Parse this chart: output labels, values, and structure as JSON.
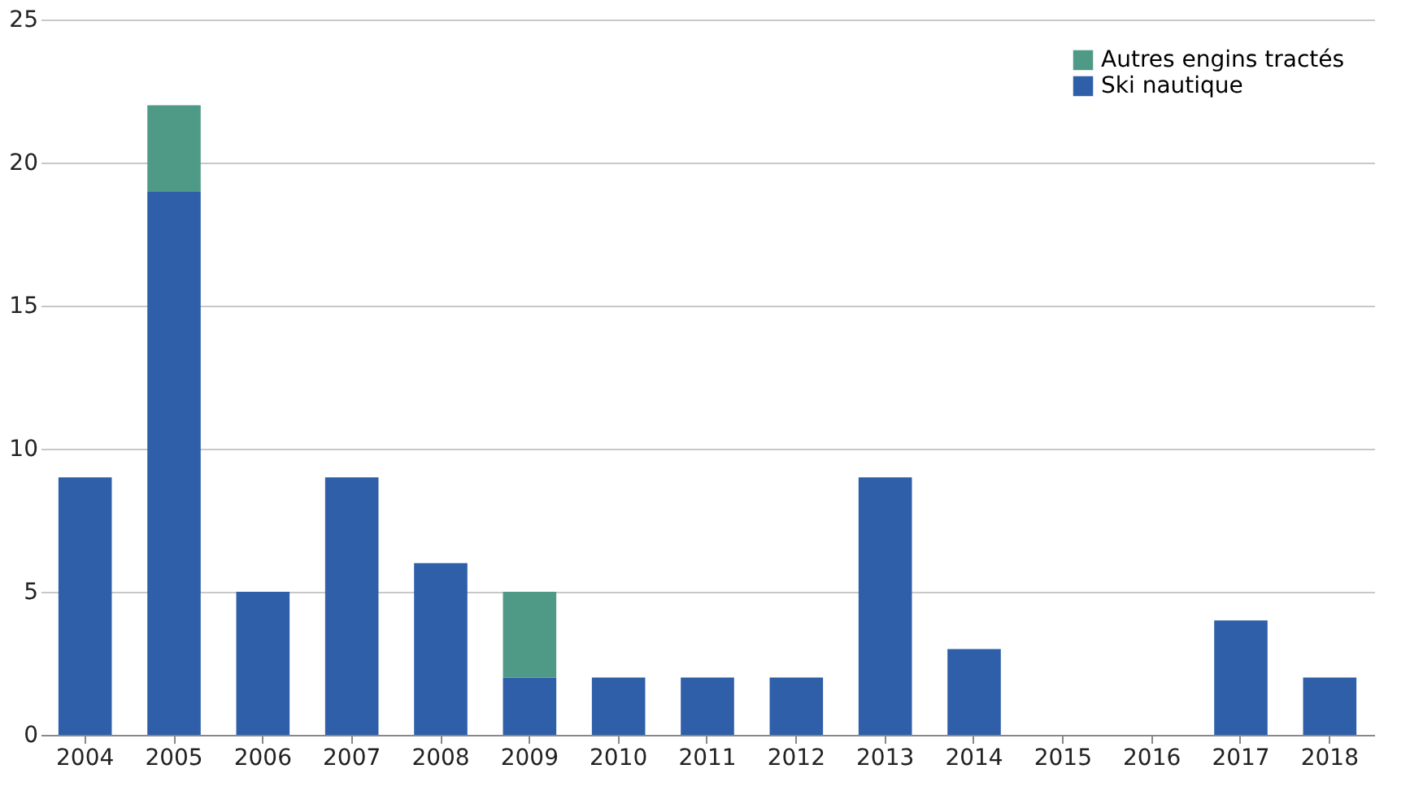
{
  "chart_data": {
    "type": "bar",
    "stacked": true,
    "categories": [
      "2004",
      "2005",
      "2006",
      "2007",
      "2008",
      "2009",
      "2010",
      "2011",
      "2012",
      "2013",
      "2014",
      "2015",
      "2016",
      "2017",
      "2018"
    ],
    "series": [
      {
        "name": "Ski nautique",
        "color": "#2e5fa8",
        "values": [
          9,
          19,
          5,
          9,
          6,
          2,
          2,
          2,
          2,
          9,
          3,
          0,
          0,
          4,
          2
        ]
      },
      {
        "name": "Autres engins tractés",
        "color": "#4f9a86",
        "values": [
          null,
          3,
          null,
          null,
          null,
          3,
          null,
          null,
          null,
          null,
          null,
          null,
          null,
          null,
          null
        ]
      }
    ],
    "ylim": [
      0,
      25
    ],
    "yticks": [
      0,
      5,
      10,
      15,
      20,
      25
    ],
    "grid": "y",
    "legend": "top right"
  }
}
